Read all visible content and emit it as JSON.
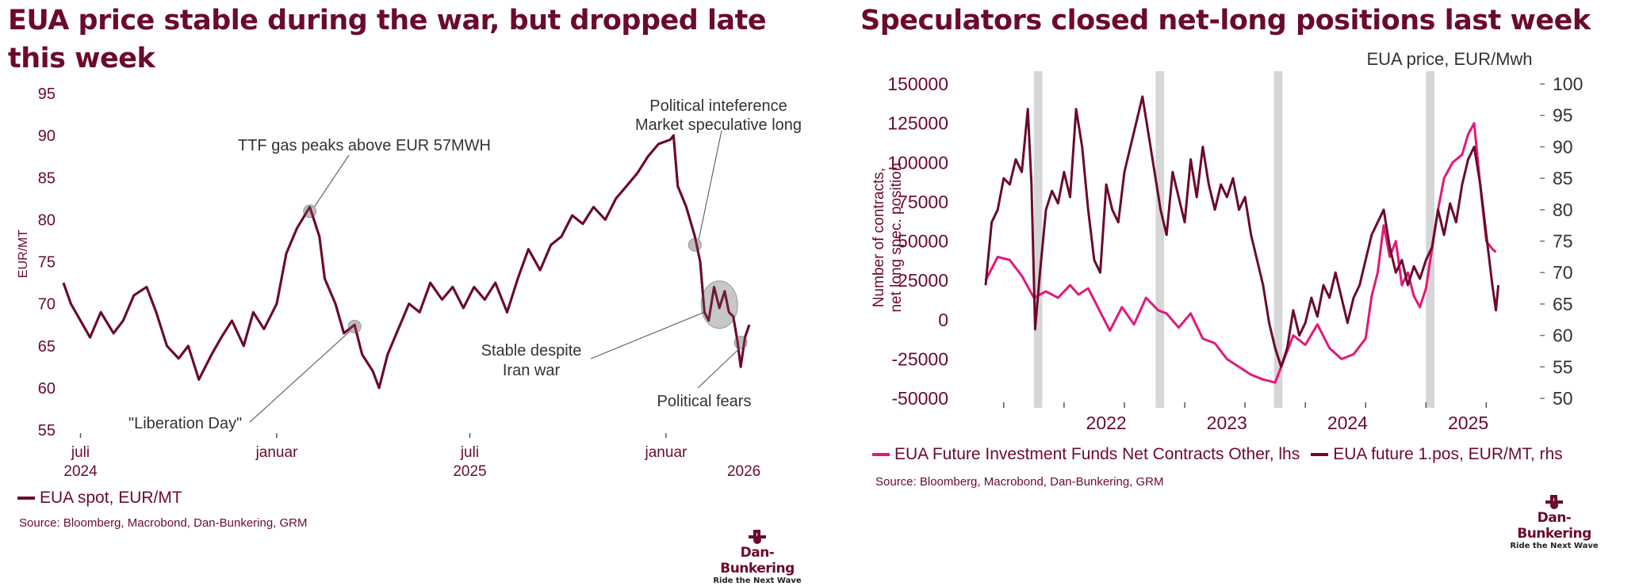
{
  "colors": {
    "maroon": "#6b0a2e",
    "pink": "#e2187a",
    "shade": "#d6d6d6"
  },
  "icons": [
    "dan-bunkering-logo-icon"
  ],
  "chart_data": [
    {
      "type": "line",
      "title": "EUA price stable during the war, but dropped late this week",
      "ylabel": "EUR/MT",
      "ylim": [
        55,
        95
      ],
      "yticks": [
        "55",
        "60",
        "65",
        "70",
        "75",
        "80",
        "85",
        "90",
        "95"
      ],
      "xlim": [
        "2024-06-15",
        "2026-04-30"
      ],
      "xticks": [
        {
          "date": "2024-07-01",
          "label": "juli",
          "year": "2024"
        },
        {
          "date": "2025-01-01",
          "label": "januar",
          "year": ""
        },
        {
          "date": "2025-07-01",
          "label": "juli",
          "year": "2025"
        },
        {
          "date": "2026-01-01",
          "label": "januar",
          "year": ""
        },
        {
          "date": "2026-03-15",
          "label": "",
          "year": "2026"
        }
      ],
      "series": [
        {
          "name": "EUA spot, EUR/MT",
          "color": "#6b0a2e",
          "points": [
            [
              "2024-06-15",
              72.5
            ],
            [
              "2024-06-22",
              70.0
            ],
            [
              "2024-07-01",
              68.0
            ],
            [
              "2024-07-10",
              66.0
            ],
            [
              "2024-07-20",
              69.0
            ],
            [
              "2024-08-01",
              66.5
            ],
            [
              "2024-08-10",
              68.0
            ],
            [
              "2024-08-20",
              71.0
            ],
            [
              "2024-09-01",
              72.0
            ],
            [
              "2024-09-10",
              69.0
            ],
            [
              "2024-09-20",
              65.0
            ],
            [
              "2024-10-01",
              63.5
            ],
            [
              "2024-10-10",
              65.0
            ],
            [
              "2024-10-20",
              61.0
            ],
            [
              "2024-11-01",
              64.0
            ],
            [
              "2024-11-10",
              66.0
            ],
            [
              "2024-11-20",
              68.0
            ],
            [
              "2024-12-01",
              65.0
            ],
            [
              "2024-12-10",
              69.0
            ],
            [
              "2024-12-20",
              67.0
            ],
            [
              "2025-01-01",
              70.0
            ],
            [
              "2025-01-10",
              76.0
            ],
            [
              "2025-01-20",
              79.0
            ],
            [
              "2025-02-01",
              81.5
            ],
            [
              "2025-02-10",
              78.0
            ],
            [
              "2025-02-15",
              73.0
            ],
            [
              "2025-02-25",
              70.0
            ],
            [
              "2025-03-05",
              66.5
            ],
            [
              "2025-03-15",
              67.5
            ],
            [
              "2025-03-22",
              64.0
            ],
            [
              "2025-04-01",
              62.0
            ],
            [
              "2025-04-07",
              60.0
            ],
            [
              "2025-04-15",
              64.0
            ],
            [
              "2025-04-25",
              67.0
            ],
            [
              "2025-05-05",
              70.0
            ],
            [
              "2025-05-15",
              69.0
            ],
            [
              "2025-05-25",
              72.5
            ],
            [
              "2025-06-05",
              70.5
            ],
            [
              "2025-06-15",
              72.0
            ],
            [
              "2025-06-25",
              69.5
            ],
            [
              "2025-07-05",
              72.0
            ],
            [
              "2025-07-15",
              70.5
            ],
            [
              "2025-07-25",
              72.5
            ],
            [
              "2025-08-05",
              69.0
            ],
            [
              "2025-08-15",
              73.0
            ],
            [
              "2025-08-25",
              76.5
            ],
            [
              "2025-09-05",
              74.0
            ],
            [
              "2025-09-15",
              77.0
            ],
            [
              "2025-09-25",
              78.0
            ],
            [
              "2025-10-05",
              80.5
            ],
            [
              "2025-10-15",
              79.5
            ],
            [
              "2025-10-25",
              81.5
            ],
            [
              "2025-11-05",
              80.0
            ],
            [
              "2025-11-15",
              82.5
            ],
            [
              "2025-11-25",
              84.0
            ],
            [
              "2025-12-05",
              85.5
            ],
            [
              "2025-12-15",
              87.5
            ],
            [
              "2025-12-25",
              89.0
            ],
            [
              "2026-01-05",
              89.5
            ],
            [
              "2026-01-08",
              90.0
            ],
            [
              "2026-01-12",
              84.0
            ],
            [
              "2026-01-20",
              81.5
            ],
            [
              "2026-01-28",
              78.0
            ],
            [
              "2026-02-02",
              75.0
            ],
            [
              "2026-02-06",
              69.0
            ],
            [
              "2026-02-10",
              68.0
            ],
            [
              "2026-02-15",
              72.0
            ],
            [
              "2026-02-20",
              69.5
            ],
            [
              "2026-02-25",
              71.5
            ],
            [
              "2026-03-01",
              69.0
            ],
            [
              "2026-03-05",
              68.5
            ],
            [
              "2026-03-09",
              65.5
            ],
            [
              "2026-03-12",
              62.5
            ],
            [
              "2026-03-16",
              66.0
            ],
            [
              "2026-03-20",
              67.5
            ]
          ]
        }
      ],
      "annotations": [
        {
          "text": "TTF gas peaks above EUR 57MWH"
        },
        {
          "text": "\"Liberation Day\""
        },
        {
          "text": "Political inteference Market speculative long",
          "lines": [
            "Political inteference",
            "Market speculative long"
          ]
        },
        {
          "text": "Stable despite Iran war",
          "lines": [
            "Stable despite",
            "Iran war"
          ]
        },
        {
          "text": "Political fears"
        }
      ],
      "legend": "EUA spot, EUR/MT",
      "source": "Source: Bloomberg, Macrobond, Dan-Bunkering, GRM",
      "logo": {
        "brand": "Dan-Bunkering",
        "tagline": "Ride the Next Wave"
      }
    },
    {
      "type": "line",
      "title": "Speculators closed net-long positions last week",
      "ylabel": "Number of contracts, net long spec. position",
      "ylabel_lines": [
        "Number of contracts,",
        "net long spec. position"
      ],
      "y2label": "EUA price, EUR/Mwh",
      "ylim": [
        -50000,
        150000
      ],
      "yticks": [
        "-50000",
        "-25000",
        "0",
        "25000",
        "50000",
        "75000",
        "100000",
        "125000",
        "150000"
      ],
      "y2lim": [
        50,
        100
      ],
      "y2ticks": [
        "50",
        "55",
        "60",
        "65",
        "70",
        "75",
        "80",
        "85",
        "90",
        "95",
        "100"
      ],
      "xlim": [
        2021.35,
        2025.8
      ],
      "xticks": [
        "2022",
        "2023",
        "2024",
        "2025"
      ],
      "shaded_periods": [
        [
          2021.75,
          2021.82
        ],
        [
          2022.76,
          2022.83
        ],
        [
          2023.74,
          2023.81
        ],
        [
          2025.0,
          2025.07
        ]
      ],
      "series": [
        {
          "name": "EUA Future Investment Funds Net Contracts Other, lhs",
          "color": "#e2187a",
          "axis": "lhs",
          "points": [
            [
              2021.35,
              25000
            ],
            [
              2021.45,
              40000
            ],
            [
              2021.55,
              38000
            ],
            [
              2021.65,
              28000
            ],
            [
              2021.75,
              14000
            ],
            [
              2021.85,
              18000
            ],
            [
              2021.95,
              14000
            ],
            [
              2022.05,
              22000
            ],
            [
              2022.12,
              16000
            ],
            [
              2022.2,
              20000
            ],
            [
              2022.3,
              5000
            ],
            [
              2022.38,
              -7000
            ],
            [
              2022.48,
              8000
            ],
            [
              2022.58,
              -3000
            ],
            [
              2022.68,
              14000
            ],
            [
              2022.78,
              6000
            ],
            [
              2022.85,
              4000
            ],
            [
              2022.95,
              -5000
            ],
            [
              2023.05,
              4000
            ],
            [
              2023.15,
              -12000
            ],
            [
              2023.25,
              -15000
            ],
            [
              2023.35,
              -25000
            ],
            [
              2023.45,
              -30000
            ],
            [
              2023.55,
              -35000
            ],
            [
              2023.65,
              -38000
            ],
            [
              2023.75,
              -40000
            ],
            [
              2023.8,
              -30000
            ],
            [
              2023.9,
              -10000
            ],
            [
              2024.0,
              -16000
            ],
            [
              2024.1,
              -3000
            ],
            [
              2024.2,
              -18000
            ],
            [
              2024.3,
              -25000
            ],
            [
              2024.4,
              -22000
            ],
            [
              2024.5,
              -12000
            ],
            [
              2024.55,
              15000
            ],
            [
              2024.6,
              30000
            ],
            [
              2024.65,
              60000
            ],
            [
              2024.7,
              40000
            ],
            [
              2024.75,
              50000
            ],
            [
              2024.8,
              22000
            ],
            [
              2024.85,
              30000
            ],
            [
              2024.9,
              15000
            ],
            [
              2024.95,
              8000
            ],
            [
              2025.0,
              20000
            ],
            [
              2025.05,
              45000
            ],
            [
              2025.1,
              70000
            ],
            [
              2025.15,
              90000
            ],
            [
              2025.22,
              100000
            ],
            [
              2025.3,
              105000
            ],
            [
              2025.35,
              118000
            ],
            [
              2025.4,
              125000
            ],
            [
              2025.45,
              85000
            ],
            [
              2025.5,
              50000
            ],
            [
              2025.55,
              45000
            ],
            [
              2025.58,
              43000
            ]
          ]
        },
        {
          "name": "EUA future 1.pos, EUR/MT, rhs",
          "color": "#6b0a2e",
          "axis": "rhs",
          "points": [
            [
              2021.35,
              68.0
            ],
            [
              2021.4,
              78.0
            ],
            [
              2021.45,
              80.0
            ],
            [
              2021.5,
              85.0
            ],
            [
              2021.55,
              84.0
            ],
            [
              2021.6,
              88.0
            ],
            [
              2021.65,
              86.0
            ],
            [
              2021.7,
              96.0
            ],
            [
              2021.73,
              84.0
            ],
            [
              2021.76,
              61.0
            ],
            [
              2021.8,
              70.0
            ],
            [
              2021.85,
              80.0
            ],
            [
              2021.9,
              83.0
            ],
            [
              2021.95,
              81.0
            ],
            [
              2022.0,
              86.0
            ],
            [
              2022.05,
              82.0
            ],
            [
              2022.1,
              96.0
            ],
            [
              2022.15,
              90.0
            ],
            [
              2022.2,
              80.0
            ],
            [
              2022.25,
              72.0
            ],
            [
              2022.3,
              70.0
            ],
            [
              2022.35,
              84.0
            ],
            [
              2022.4,
              80.0
            ],
            [
              2022.45,
              78.0
            ],
            [
              2022.5,
              86.0
            ],
            [
              2022.55,
              90.0
            ],
            [
              2022.6,
              94.0
            ],
            [
              2022.65,
              98.0
            ],
            [
              2022.7,
              92.0
            ],
            [
              2022.75,
              86.0
            ],
            [
              2022.8,
              80.0
            ],
            [
              2022.85,
              76.0
            ],
            [
              2022.9,
              86.0
            ],
            [
              2022.95,
              82.0
            ],
            [
              2023.0,
              78.0
            ],
            [
              2023.05,
              88.0
            ],
            [
              2023.1,
              82.0
            ],
            [
              2023.15,
              90.0
            ],
            [
              2023.2,
              84.0
            ],
            [
              2023.25,
              80.0
            ],
            [
              2023.3,
              84.0
            ],
            [
              2023.35,
              82.0
            ],
            [
              2023.4,
              85.0
            ],
            [
              2023.45,
              80.0
            ],
            [
              2023.5,
              82.0
            ],
            [
              2023.55,
              76.0
            ],
            [
              2023.6,
              72.0
            ],
            [
              2023.65,
              68.0
            ],
            [
              2023.7,
              62.0
            ],
            [
              2023.75,
              58.0
            ],
            [
              2023.8,
              55.0
            ],
            [
              2023.85,
              58.0
            ],
            [
              2023.9,
              64.0
            ],
            [
              2023.95,
              60.0
            ],
            [
              2024.0,
              62.0
            ],
            [
              2024.05,
              66.0
            ],
            [
              2024.1,
              63.0
            ],
            [
              2024.15,
              68.0
            ],
            [
              2024.2,
              66.0
            ],
            [
              2024.25,
              70.0
            ],
            [
              2024.3,
              66.0
            ],
            [
              2024.35,
              62.0
            ],
            [
              2024.4,
              66.0
            ],
            [
              2024.45,
              68.0
            ],
            [
              2024.5,
              72.0
            ],
            [
              2024.55,
              76.0
            ],
            [
              2024.6,
              78.0
            ],
            [
              2024.65,
              80.0
            ],
            [
              2024.7,
              74.0
            ],
            [
              2024.75,
              70.0
            ],
            [
              2024.8,
              72.0
            ],
            [
              2024.85,
              68.0
            ],
            [
              2024.9,
              71.0
            ],
            [
              2024.95,
              69.0
            ],
            [
              2025.0,
              72.0
            ],
            [
              2025.05,
              74.0
            ],
            [
              2025.1,
              80.0
            ],
            [
              2025.15,
              76.0
            ],
            [
              2025.2,
              81.0
            ],
            [
              2025.25,
              78.0
            ],
            [
              2025.3,
              84.0
            ],
            [
              2025.35,
              88.0
            ],
            [
              2025.4,
              90.0
            ],
            [
              2025.45,
              84.0
            ],
            [
              2025.5,
              76.0
            ],
            [
              2025.55,
              68.0
            ],
            [
              2025.58,
              64.0
            ],
            [
              2025.6,
              68.0
            ]
          ]
        }
      ],
      "legend": [
        "EUA Future Investment Funds Net Contracts Other, lhs",
        "EUA future 1.pos, EUR/MT, rhs"
      ],
      "source": "Source: Bloomberg, Macrobond, Dan-Bunkering, GRM",
      "logo": {
        "brand": "Dan-Bunkering",
        "tagline": "Ride the Next Wave"
      }
    }
  ]
}
